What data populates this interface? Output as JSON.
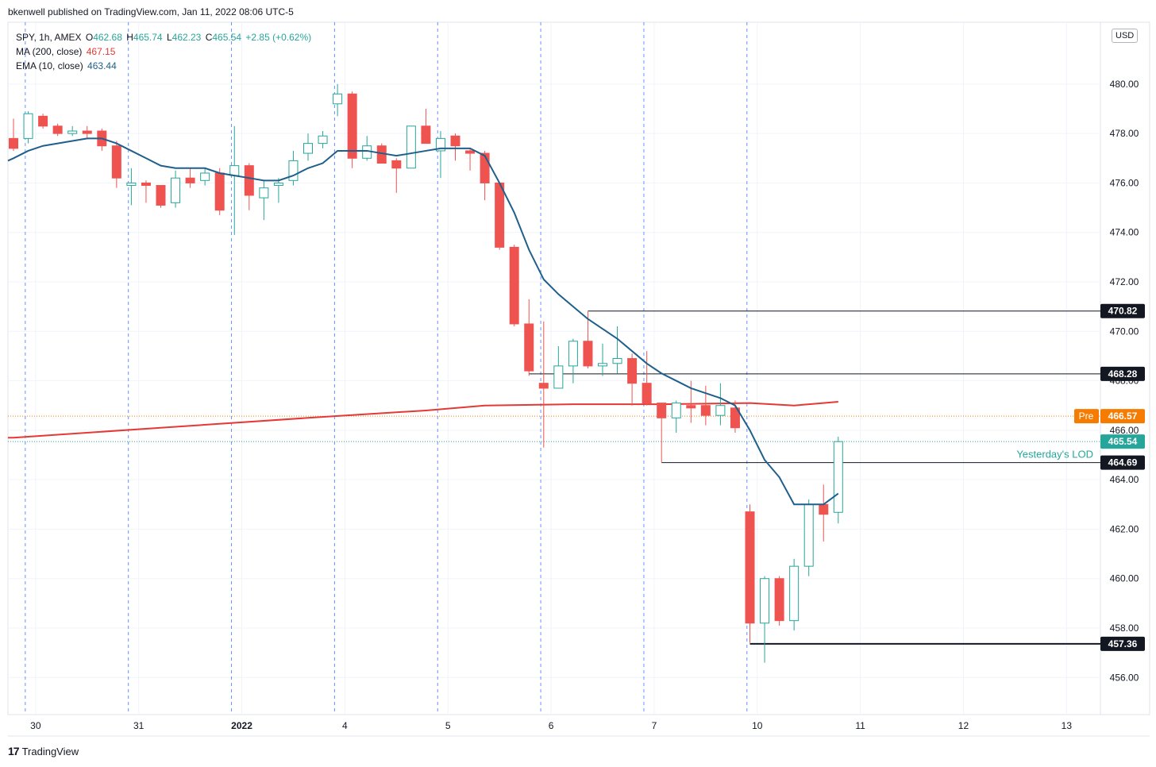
{
  "header": {
    "published": "bkenwell published on TradingView.com, Jan 11, 2022 08:06 UTC-5"
  },
  "legend": {
    "symbol": "SPY, 1h, AMEX",
    "o_label": "O",
    "o": "462.68",
    "h_label": "H",
    "h": "465.74",
    "l_label": "L",
    "l": "462.23",
    "c_label": "C",
    "c": "465.54",
    "change": "+2.85 (+0.62%)",
    "ma_label": "MA (200, close)",
    "ma_value": "467.15",
    "ema_label": "EMA (10, close)",
    "ema_value": "463.44"
  },
  "currency_badge": "USD",
  "footer": {
    "logo": "17",
    "brand": "TradingView"
  },
  "colors": {
    "up": "#26a69a",
    "down": "#ef5350",
    "ma": "#e53935",
    "ema": "#1f5f8b",
    "pre": "#f57c00",
    "last": "#26a69a",
    "level": "#131722",
    "session": "#2962ff"
  },
  "chart_data": {
    "type": "candlestick",
    "symbol": "SPY",
    "interval": "1h",
    "ylim": [
      454.5,
      482.5
    ],
    "y_ticks": [
      456,
      458,
      460,
      462,
      464,
      466,
      468,
      470,
      472,
      474,
      476,
      478,
      480
    ],
    "x_tick_labels": [
      {
        "label": "30",
        "x": 1.5
      },
      {
        "label": "31",
        "x": 8.5
      },
      {
        "label": "2022",
        "x": 15.5
      },
      {
        "label": "4",
        "x": 22.5
      },
      {
        "label": "5",
        "x": 29.5
      },
      {
        "label": "6",
        "x": 36.5
      },
      {
        "label": "7",
        "x": 43.5
      },
      {
        "label": "10",
        "x": 50.5
      },
      {
        "label": "11",
        "x": 57.5
      },
      {
        "label": "12",
        "x": 64.5
      },
      {
        "label": "13",
        "x": 71.5
      }
    ],
    "x_range": [
      0,
      74.3
    ],
    "session_breaks": [
      0.8,
      7.8,
      14.8,
      21.8,
      28.8,
      35.8,
      42.8,
      49.8
    ],
    "candles": [
      {
        "x": 0,
        "o": 477.8,
        "h": 478.6,
        "l": 477.3,
        "c": 477.4
      },
      {
        "x": 1,
        "o": 477.8,
        "h": 478.9,
        "l": 477.6,
        "c": 478.8
      },
      {
        "x": 2,
        "o": 478.7,
        "h": 478.8,
        "l": 478.2,
        "c": 478.3
      },
      {
        "x": 3,
        "o": 478.3,
        "h": 478.4,
        "l": 477.9,
        "c": 478.0
      },
      {
        "x": 4,
        "o": 478.0,
        "h": 478.3,
        "l": 477.9,
        "c": 478.1
      },
      {
        "x": 5,
        "o": 478.1,
        "h": 478.3,
        "l": 477.8,
        "c": 478.0
      },
      {
        "x": 6,
        "o": 478.1,
        "h": 478.2,
        "l": 477.3,
        "c": 477.5
      },
      {
        "x": 7,
        "o": 477.5,
        "h": 477.7,
        "l": 475.8,
        "c": 476.2
      },
      {
        "x": 8,
        "o": 475.9,
        "h": 476.6,
        "l": 475.1,
        "c": 476.0
      },
      {
        "x": 9,
        "o": 476.0,
        "h": 476.1,
        "l": 475.2,
        "c": 475.9
      },
      {
        "x": 10,
        "o": 475.9,
        "h": 475.9,
        "l": 475.0,
        "c": 475.1
      },
      {
        "x": 11,
        "o": 475.2,
        "h": 476.5,
        "l": 475.0,
        "c": 476.2
      },
      {
        "x": 12,
        "o": 476.2,
        "h": 476.6,
        "l": 475.8,
        "c": 476.0
      },
      {
        "x": 13,
        "o": 476.1,
        "h": 476.6,
        "l": 475.9,
        "c": 476.4
      },
      {
        "x": 14,
        "o": 476.4,
        "h": 476.6,
        "l": 474.7,
        "c": 474.9
      },
      {
        "x": 15,
        "o": 476.3,
        "h": 478.3,
        "l": 473.9,
        "c": 476.7
      },
      {
        "x": 16,
        "o": 476.7,
        "h": 476.8,
        "l": 474.9,
        "c": 475.5
      },
      {
        "x": 17,
        "o": 475.4,
        "h": 476.1,
        "l": 474.5,
        "c": 475.8
      },
      {
        "x": 18,
        "o": 475.9,
        "h": 476.2,
        "l": 475.2,
        "c": 476.0
      },
      {
        "x": 19,
        "o": 476.1,
        "h": 477.3,
        "l": 475.9,
        "c": 476.9
      },
      {
        "x": 20,
        "o": 477.2,
        "h": 478.0,
        "l": 476.9,
        "c": 477.6
      },
      {
        "x": 21,
        "o": 477.6,
        "h": 478.1,
        "l": 477.4,
        "c": 477.9
      },
      {
        "x": 22,
        "o": 479.2,
        "h": 480.0,
        "l": 478.7,
        "c": 479.6
      },
      {
        "x": 23,
        "o": 479.6,
        "h": 479.7,
        "l": 476.6,
        "c": 477.0
      },
      {
        "x": 24,
        "o": 477.0,
        "h": 477.9,
        "l": 476.9,
        "c": 477.5
      },
      {
        "x": 25,
        "o": 477.5,
        "h": 477.6,
        "l": 476.8,
        "c": 476.8
      },
      {
        "x": 26,
        "o": 476.9,
        "h": 477.0,
        "l": 475.6,
        "c": 476.6
      },
      {
        "x": 27,
        "o": 476.6,
        "h": 478.3,
        "l": 476.6,
        "c": 478.3
      },
      {
        "x": 28,
        "o": 478.3,
        "h": 479.0,
        "l": 477.6,
        "c": 477.6
      },
      {
        "x": 29,
        "o": 477.3,
        "h": 478.1,
        "l": 476.2,
        "c": 477.8
      },
      {
        "x": 30,
        "o": 477.9,
        "h": 478.0,
        "l": 476.9,
        "c": 477.5
      },
      {
        "x": 31,
        "o": 477.3,
        "h": 477.4,
        "l": 476.5,
        "c": 477.2
      },
      {
        "x": 32,
        "o": 477.2,
        "h": 477.3,
        "l": 475.3,
        "c": 476.0
      },
      {
        "x": 33,
        "o": 476.0,
        "h": 476.0,
        "l": 473.3,
        "c": 473.4
      },
      {
        "x": 34,
        "o": 473.4,
        "h": 473.5,
        "l": 470.2,
        "c": 470.3
      },
      {
        "x": 35,
        "o": 470.3,
        "h": 471.3,
        "l": 468.2,
        "c": 468.4
      },
      {
        "x": 36,
        "o": 467.9,
        "h": 470.4,
        "l": 465.3,
        "c": 467.7
      },
      {
        "x": 37,
        "o": 467.7,
        "h": 469.4,
        "l": 467.7,
        "c": 468.6
      },
      {
        "x": 38,
        "o": 468.6,
        "h": 469.7,
        "l": 467.9,
        "c": 469.6
      },
      {
        "x": 39,
        "o": 469.6,
        "h": 470.8,
        "l": 468.5,
        "c": 468.6
      },
      {
        "x": 40,
        "o": 468.6,
        "h": 469.5,
        "l": 468.2,
        "c": 468.7
      },
      {
        "x": 41,
        "o": 468.7,
        "h": 470.2,
        "l": 468.3,
        "c": 468.9
      },
      {
        "x": 42,
        "o": 468.9,
        "h": 469.1,
        "l": 467.0,
        "c": 467.9
      },
      {
        "x": 43,
        "o": 467.9,
        "h": 469.2,
        "l": 467.0,
        "c": 467.1
      },
      {
        "x": 44,
        "o": 467.1,
        "h": 467.1,
        "l": 464.7,
        "c": 466.5
      },
      {
        "x": 45,
        "o": 466.5,
        "h": 467.2,
        "l": 465.9,
        "c": 467.1
      },
      {
        "x": 46,
        "o": 467.0,
        "h": 468.0,
        "l": 466.3,
        "c": 466.9
      },
      {
        "x": 47,
        "o": 467.0,
        "h": 467.8,
        "l": 466.2,
        "c": 466.6
      },
      {
        "x": 48,
        "o": 466.6,
        "h": 467.9,
        "l": 466.2,
        "c": 467.0
      },
      {
        "x": 49,
        "o": 466.9,
        "h": 467.2,
        "l": 465.9,
        "c": 466.1
      },
      {
        "x": 50,
        "o": 462.7,
        "h": 463.0,
        "l": 457.4,
        "c": 458.2
      },
      {
        "x": 51,
        "o": 458.2,
        "h": 460.1,
        "l": 456.6,
        "c": 460.0
      },
      {
        "x": 52,
        "o": 460.0,
        "h": 460.1,
        "l": 458.1,
        "c": 458.3
      },
      {
        "x": 53,
        "o": 458.3,
        "h": 460.8,
        "l": 457.9,
        "c": 460.5
      },
      {
        "x": 54,
        "o": 460.5,
        "h": 463.2,
        "l": 460.1,
        "c": 463.0
      },
      {
        "x": 55,
        "o": 463.0,
        "h": 463.8,
        "l": 461.5,
        "c": 462.6
      },
      {
        "x": 56,
        "o": 462.68,
        "h": 465.74,
        "l": 462.23,
        "c": 465.54
      }
    ],
    "ma200": [
      {
        "x": 0,
        "v": 465.7
      },
      {
        "x": 10,
        "v": 466.1
      },
      {
        "x": 20,
        "v": 466.5
      },
      {
        "x": 28,
        "v": 466.8
      },
      {
        "x": 32,
        "v": 467.0
      },
      {
        "x": 38,
        "v": 467.05
      },
      {
        "x": 44,
        "v": 467.05
      },
      {
        "x": 50,
        "v": 467.1
      },
      {
        "x": 53,
        "v": 467.0
      },
      {
        "x": 56,
        "v": 467.15
      }
    ],
    "ema10": [
      {
        "x": 0,
        "v": 477.0
      },
      {
        "x": 1,
        "v": 477.3
      },
      {
        "x": 2,
        "v": 477.5
      },
      {
        "x": 3,
        "v": 477.6
      },
      {
        "x": 4,
        "v": 477.7
      },
      {
        "x": 5,
        "v": 477.8
      },
      {
        "x": 6,
        "v": 477.8
      },
      {
        "x": 7,
        "v": 477.6
      },
      {
        "x": 8,
        "v": 477.3
      },
      {
        "x": 9,
        "v": 477.0
      },
      {
        "x": 10,
        "v": 476.7
      },
      {
        "x": 11,
        "v": 476.6
      },
      {
        "x": 12,
        "v": 476.6
      },
      {
        "x": 13,
        "v": 476.6
      },
      {
        "x": 14,
        "v": 476.4
      },
      {
        "x": 15,
        "v": 476.3
      },
      {
        "x": 16,
        "v": 476.2
      },
      {
        "x": 17,
        "v": 476.1
      },
      {
        "x": 18,
        "v": 476.1
      },
      {
        "x": 19,
        "v": 476.3
      },
      {
        "x": 20,
        "v": 476.6
      },
      {
        "x": 21,
        "v": 476.8
      },
      {
        "x": 22,
        "v": 477.3
      },
      {
        "x": 23,
        "v": 477.3
      },
      {
        "x": 24,
        "v": 477.3
      },
      {
        "x": 25,
        "v": 477.2
      },
      {
        "x": 26,
        "v": 477.1
      },
      {
        "x": 27,
        "v": 477.2
      },
      {
        "x": 28,
        "v": 477.3
      },
      {
        "x": 29,
        "v": 477.4
      },
      {
        "x": 30,
        "v": 477.4
      },
      {
        "x": 31,
        "v": 477.4
      },
      {
        "x": 32,
        "v": 477.1
      },
      {
        "x": 33,
        "v": 476.0
      },
      {
        "x": 34,
        "v": 474.8
      },
      {
        "x": 35,
        "v": 473.3
      },
      {
        "x": 36,
        "v": 472.1
      },
      {
        "x": 37,
        "v": 471.5
      },
      {
        "x": 38,
        "v": 471.0
      },
      {
        "x": 39,
        "v": 470.5
      },
      {
        "x": 40,
        "v": 470.1
      },
      {
        "x": 41,
        "v": 469.7
      },
      {
        "x": 42,
        "v": 469.2
      },
      {
        "x": 43,
        "v": 468.7
      },
      {
        "x": 44,
        "v": 468.3
      },
      {
        "x": 45,
        "v": 468.0
      },
      {
        "x": 46,
        "v": 467.7
      },
      {
        "x": 47,
        "v": 467.5
      },
      {
        "x": 48,
        "v": 467.3
      },
      {
        "x": 49,
        "v": 467.0
      },
      {
        "x": 50,
        "v": 466.0
      },
      {
        "x": 51,
        "v": 464.8
      },
      {
        "x": 52,
        "v": 464.1
      },
      {
        "x": 53,
        "v": 463.0
      },
      {
        "x": 54,
        "v": 463.0
      },
      {
        "x": 55,
        "v": 463.0
      },
      {
        "x": 56,
        "v": 463.44
      }
    ],
    "horizontal_levels": [
      {
        "price": 470.82,
        "label": "470.82",
        "x_start": 39
      },
      {
        "price": 468.28,
        "label": "468.28",
        "x_start": 35
      },
      {
        "price": 464.69,
        "label": "464.69",
        "x_start": 44,
        "annotation": "Yesterday's LOD"
      },
      {
        "price": 457.36,
        "label": "457.36",
        "x_start": 50
      }
    ],
    "pre_market": {
      "price": 466.57,
      "label": "Pre",
      "value": "466.57"
    },
    "last_price": {
      "price": 465.54,
      "value": "465.54"
    }
  }
}
